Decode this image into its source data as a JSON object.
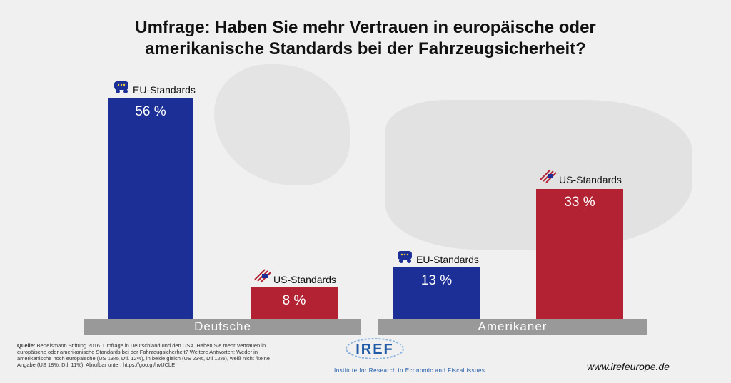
{
  "title_line1": "Umfrage: Haben Sie mehr Vertrauen in europäische oder",
  "title_line2": "amerikanische Standards bei der Fahrzeugsicherheit?",
  "chart_data": {
    "type": "bar",
    "title": "Umfrage: Haben Sie mehr Vertrauen in europäische oder amerikanische Standards bei der Fahrzeugsicherheit?",
    "categories": [
      "Deutsche",
      "Amerikaner"
    ],
    "series": [
      {
        "name": "EU-Standards",
        "values": [
          56,
          13
        ],
        "color": "#1c2f97"
      },
      {
        "name": "US-Standards",
        "values": [
          8,
          33
        ],
        "color": "#b22233"
      }
    ],
    "value_labels": {
      "deutsche_eu": "56 %",
      "deutsche_us": "8 %",
      "amerikaner_eu": "13 %",
      "amerikaner_us": "33 %"
    },
    "unit": "%",
    "ylim": [
      0,
      56
    ],
    "grid": false
  },
  "labels": {
    "eu": "EU-Standards",
    "us": "US-Standards"
  },
  "icons": {
    "eu": "eu-flag-car-icon",
    "us": "us-flag-car-icon"
  },
  "source": {
    "label": "Quelle:",
    "text": " Bertelsmann Stiftung 2016. Umfrage in Deutschland und den USA.  Haben Sie mehr Vertrauen in europäische oder amerikanische Standards bei der Fahrzeugsicherheit? Weitere Antworten: Weder in amerikanische noch europäische (US 13%, Dtl. 12%), in beide gleich (US 23%, Dtl 12%), weiß nicht /keine Angabe (US 18%, Dtl. 11%). Abrufbar unter: https://goo.gl/hvUCbE"
  },
  "logo": {
    "name": "IREF",
    "subtitle": "Institute for Research in Economic and Fiscal issues"
  },
  "url": "www.irefeurope.de"
}
